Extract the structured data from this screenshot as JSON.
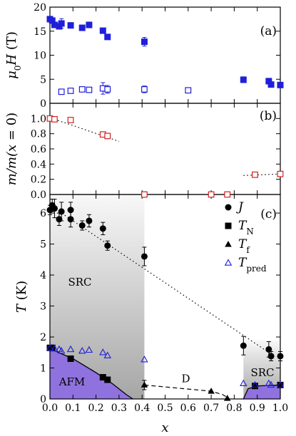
{
  "chart_data": [
    {
      "panel": "(a)",
      "type": "scatter",
      "ylabel": "μ0H (T)",
      "ylim": [
        0,
        20
      ],
      "yticks": [
        0,
        5,
        10,
        15,
        20
      ],
      "xlim": [
        0,
        1.0
      ],
      "series": [
        {
          "marker": "filled-square",
          "color": "#1f1fdb",
          "x": [
            0.0,
            0.01,
            0.02,
            0.04,
            0.05,
            0.09,
            0.14,
            0.17,
            0.23,
            0.25,
            0.41,
            0.84,
            0.95,
            0.96,
            1.0
          ],
          "y": [
            17.5,
            17.2,
            16.3,
            16.0,
            16.6,
            16.2,
            15.7,
            16.3,
            15.1,
            13.8,
            12.8,
            4.9,
            4.6,
            3.9,
            3.8
          ],
          "err": [
            0.4,
            0.4,
            0.5,
            0.5,
            1.0,
            0.5,
            0.5,
            0.6,
            0.5,
            0.5,
            0.9,
            0.6,
            0.6,
            0.5,
            0.5
          ]
        },
        {
          "marker": "open-square",
          "color": "#1f1fdb",
          "x": [
            0.05,
            0.09,
            0.14,
            0.17,
            0.23,
            0.25,
            0.41,
            0.6
          ],
          "y": [
            2.4,
            2.6,
            2.9,
            2.8,
            3.1,
            2.9,
            2.9,
            2.7
          ],
          "err": [
            0.3,
            0.3,
            0.3,
            0.3,
            1.2,
            0.8,
            0.7,
            0.3
          ]
        }
      ]
    },
    {
      "panel": "(b)",
      "type": "scatter",
      "ylabel": "m/m(x = 0)",
      "ylim": [
        0,
        1.2
      ],
      "yticks": [
        0.0,
        0.2,
        0.4,
        0.6,
        0.8,
        1.0
      ],
      "xlim": [
        0,
        1.0
      ],
      "series": [
        {
          "marker": "open-square",
          "color": "#d42020",
          "x": [
            0.0,
            0.02,
            0.09,
            0.23,
            0.25,
            0.41,
            0.7,
            0.77,
            0.89,
            1.0
          ],
          "y": [
            1.0,
            0.99,
            0.98,
            0.79,
            0.77,
            0.0,
            0.0,
            0.0,
            0.26,
            0.27
          ]
        }
      ],
      "guides": [
        {
          "style": "dotted",
          "x": [
            0.02,
            0.3
          ],
          "y": [
            0.99,
            0.7
          ]
        },
        {
          "style": "dotted",
          "x": [
            0.84,
            1.0
          ],
          "y": [
            0.25,
            0.27
          ]
        }
      ]
    },
    {
      "panel": "(c)",
      "type": "scatter",
      "xlabel": "x",
      "ylabel": "T (K)",
      "ylim": [
        0,
        6.6
      ],
      "yticks": [
        0,
        1,
        2,
        3,
        4,
        5,
        6
      ],
      "xlim": [
        0,
        1.0
      ],
      "xticks": [
        "0.0",
        "0.1",
        "0.2",
        "0.3",
        "0.4",
        "0.5",
        "0.6",
        "0.7",
        "0.8",
        "0.9",
        "1.0"
      ],
      "legend": {
        "placement": "top-right",
        "entries": [
          {
            "label": "J",
            "marker": "filled-circle"
          },
          {
            "label": "TN",
            "marker": "filled-square"
          },
          {
            "label": "Tf",
            "marker": "filled-triangle"
          },
          {
            "label": "Tpred",
            "marker": "open-triangle"
          }
        ]
      },
      "series": [
        {
          "name": "J",
          "marker": "filled-circle",
          "color": "#000000",
          "x": [
            0.0,
            0.01,
            0.02,
            0.04,
            0.05,
            0.09,
            0.09,
            0.14,
            0.17,
            0.23,
            0.25,
            0.41,
            0.84,
            0.95,
            0.96,
            1.0
          ],
          "y": [
            6.1,
            6.25,
            6.15,
            5.8,
            6.05,
            6.1,
            5.8,
            5.6,
            5.75,
            5.5,
            4.95,
            4.6,
            1.72,
            1.6,
            1.38,
            1.38
          ],
          "err": [
            0.15,
            0.2,
            0.3,
            0.2,
            0.3,
            0.25,
            0.25,
            0.15,
            0.2,
            0.2,
            0.15,
            0.3,
            0.3,
            0.25,
            0.15,
            0.15
          ]
        },
        {
          "name": "TN",
          "marker": "filled-square",
          "color": "#000000",
          "x": [
            0.0,
            0.01,
            0.09,
            0.23,
            0.25,
            0.89,
            1.0
          ],
          "y": [
            1.65,
            1.65,
            1.3,
            0.7,
            0.62,
            0.42,
            0.45
          ]
        },
        {
          "name": "Tf",
          "marker": "filled-triangle",
          "color": "#000000",
          "x": [
            0.41,
            0.7,
            0.77
          ],
          "y": [
            0.45,
            0.25,
            0.02
          ],
          "err": [
            0.15,
            0.0,
            0.0
          ]
        },
        {
          "name": "Tpred",
          "marker": "open-triangle",
          "color": "#1f1fdb",
          "x": [
            0.0,
            0.02,
            0.04,
            0.05,
            0.09,
            0.14,
            0.17,
            0.23,
            0.25,
            0.41,
            0.84,
            0.89,
            0.95,
            0.96,
            1.0
          ],
          "y": [
            1.65,
            1.62,
            1.6,
            1.55,
            1.6,
            1.55,
            1.58,
            1.5,
            1.4,
            1.27,
            0.5,
            0.45,
            0.5,
            0.45,
            0.45
          ]
        }
      ],
      "guides": [
        {
          "style": "dotted",
          "x": [
            0.0,
            0.96
          ],
          "y": [
            6.25,
            1.45
          ]
        },
        {
          "style": "dashed",
          "x": [
            0.41,
            0.7,
            0.75,
            0.78
          ],
          "y": [
            0.45,
            0.25,
            0.14,
            0.0
          ]
        }
      ],
      "regions": [
        {
          "label": "SRC",
          "kind": "gradient-gray",
          "x": [
            0.0,
            0.41
          ],
          "y": [
            0,
            6.6
          ]
        },
        {
          "label": "SRC",
          "kind": "gradient-gray",
          "x": [
            0.84,
            1.0
          ],
          "y": [
            0,
            1.9
          ]
        },
        {
          "label": "AFM",
          "kind": "purple",
          "boundary_x": [
            0.0,
            0.1,
            0.2,
            0.27,
            0.33,
            0.36
          ],
          "boundary_y": [
            1.62,
            1.3,
            0.85,
            0.5,
            0.15,
            0.0
          ]
        },
        {
          "label": "",
          "kind": "purple",
          "boundary_x": [
            0.84,
            0.86,
            0.9,
            1.0
          ],
          "boundary_y": [
            0.0,
            0.33,
            0.42,
            0.45
          ]
        },
        {
          "label": "D",
          "kind": "text-only",
          "x": [
            0.59,
            0.59
          ],
          "y": [
            0.65,
            0.65
          ]
        }
      ],
      "colors": {
        "purple": "#8f72de",
        "gray_dark": "#a6a6a6",
        "gray_light": "#f6f6f6"
      }
    }
  ]
}
